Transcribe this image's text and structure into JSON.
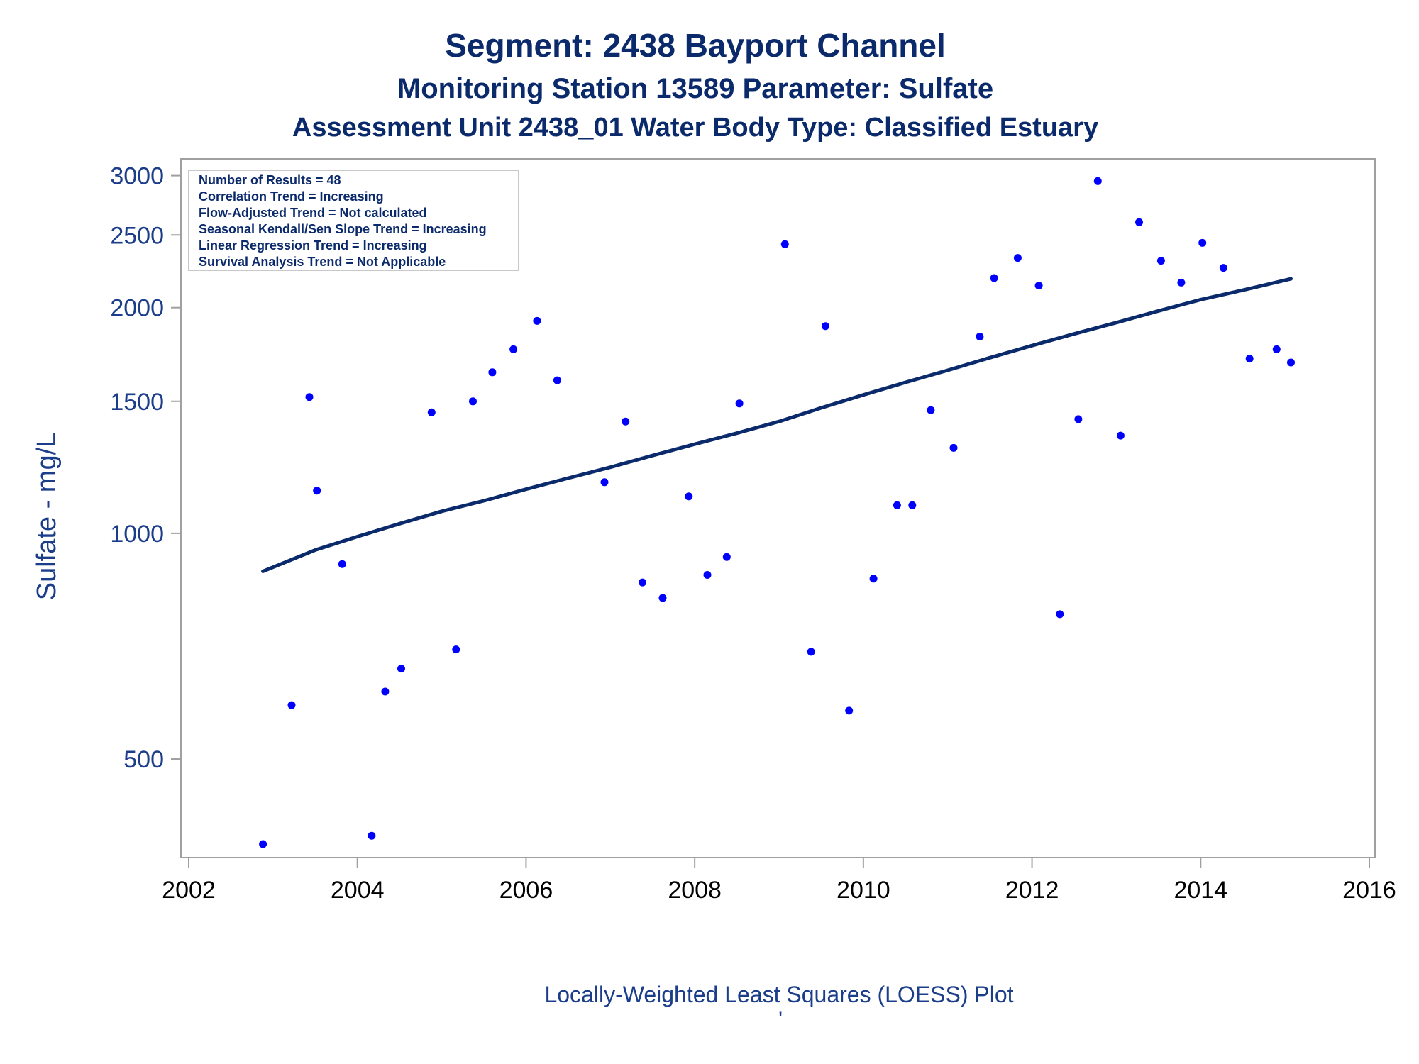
{
  "titles": {
    "line1": "Segment: 2438  Bayport Channel",
    "line2": "Monitoring Station 13589 Parameter: Sulfate",
    "line3": "Assessment Unit 2438_01   Water Body Type: Classified Estuary"
  },
  "stats_box": [
    "Number of Results = 48",
    "Correlation Trend = Increasing",
    "Flow-Adjusted Trend = Not calculated",
    "Seasonal Kendall/Sen Slope Trend = Increasing",
    "Linear Regression Trend = Increasing",
    "Survival Analysis Trend = Not Applicable"
  ],
  "footer": "Locally-Weighted Least Squares (LOESS) Plot",
  "footer_mark": "'",
  "colors": {
    "title": "#0b2a6b",
    "points": "#0000ff",
    "line": "#0b2a6b",
    "axis": "#a0a0a0"
  },
  "chart_data": {
    "type": "scatter",
    "ylabel": "Sulfate - mg/L",
    "xlabel": "",
    "yscale": "log",
    "xlim": [
      2002,
      2016
    ],
    "ylim": [
      380,
      3050
    ],
    "xticks": [
      2002,
      2004,
      2006,
      2008,
      2010,
      2012,
      2014,
      2016
    ],
    "yticks": [
      500,
      1000,
      1500,
      2000,
      2500,
      3000
    ],
    "grid": false,
    "points": [
      [
        2002.88,
        385
      ],
      [
        2003.22,
        590
      ],
      [
        2003.43,
        1520
      ],
      [
        2003.52,
        1140
      ],
      [
        2003.82,
        910
      ],
      [
        2004.17,
        395
      ],
      [
        2004.33,
        615
      ],
      [
        2004.52,
        660
      ],
      [
        2004.88,
        1450
      ],
      [
        2005.17,
        700
      ],
      [
        2005.37,
        1500
      ],
      [
        2005.6,
        1640
      ],
      [
        2005.85,
        1760
      ],
      [
        2006.13,
        1920
      ],
      [
        2006.37,
        1600
      ],
      [
        2006.93,
        1170
      ],
      [
        2007.18,
        1410
      ],
      [
        2007.38,
        860
      ],
      [
        2007.62,
        820
      ],
      [
        2007.93,
        1120
      ],
      [
        2008.15,
        880
      ],
      [
        2008.38,
        930
      ],
      [
        2008.53,
        1490
      ],
      [
        2009.07,
        2430
      ],
      [
        2009.38,
        695
      ],
      [
        2009.55,
        1890
      ],
      [
        2009.83,
        580
      ],
      [
        2010.12,
        870
      ],
      [
        2010.4,
        1090
      ],
      [
        2010.58,
        1090
      ],
      [
        2010.8,
        1460
      ],
      [
        2011.07,
        1300
      ],
      [
        2011.38,
        1830
      ],
      [
        2011.55,
        2190
      ],
      [
        2011.83,
        2330
      ],
      [
        2012.08,
        2140
      ],
      [
        2012.33,
        780
      ],
      [
        2012.55,
        1420
      ],
      [
        2012.78,
        2950
      ],
      [
        2013.05,
        1350
      ],
      [
        2013.27,
        2600
      ],
      [
        2013.53,
        2310
      ],
      [
        2013.77,
        2160
      ],
      [
        2014.02,
        2440
      ],
      [
        2014.27,
        2260
      ],
      [
        2014.58,
        1710
      ],
      [
        2014.9,
        1760
      ],
      [
        2015.07,
        1690
      ]
    ],
    "loess": [
      [
        2002.88,
        890
      ],
      [
        2003.5,
        950
      ],
      [
        2004.0,
        990
      ],
      [
        2004.5,
        1030
      ],
      [
        2005.0,
        1070
      ],
      [
        2005.5,
        1105
      ],
      [
        2006.0,
        1145
      ],
      [
        2006.5,
        1185
      ],
      [
        2007.0,
        1225
      ],
      [
        2007.5,
        1270
      ],
      [
        2008.0,
        1315
      ],
      [
        2008.5,
        1360
      ],
      [
        2009.0,
        1410
      ],
      [
        2009.5,
        1470
      ],
      [
        2010.0,
        1530
      ],
      [
        2010.5,
        1590
      ],
      [
        2011.0,
        1650
      ],
      [
        2011.5,
        1715
      ],
      [
        2012.0,
        1780
      ],
      [
        2012.5,
        1845
      ],
      [
        2013.0,
        1910
      ],
      [
        2013.5,
        1980
      ],
      [
        2014.0,
        2050
      ],
      [
        2014.5,
        2110
      ],
      [
        2015.07,
        2185
      ]
    ]
  }
}
